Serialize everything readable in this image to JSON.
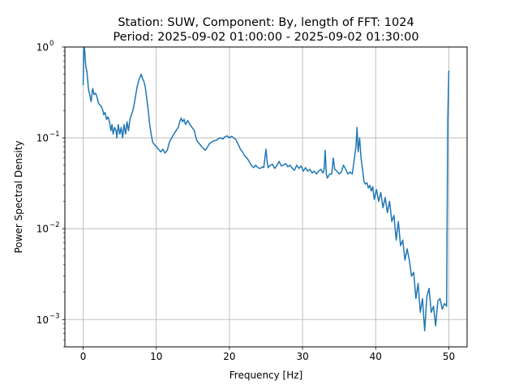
{
  "chart_data": {
    "type": "line",
    "title_line1": "Station: SUW, Component: By, length of FFT: 1024",
    "title_line2": "Period: 2025-09-02 01:00:00 - 2025-09-02 01:30:00",
    "xlabel": "Frequency [Hz]",
    "ylabel": "Power Spectral Density",
    "xscale": "linear",
    "yscale": "log",
    "xlim": [
      -2.5,
      52.5
    ],
    "ylim": [
      0.0005,
      1
    ],
    "grid": true,
    "line_color": "#1f77b4",
    "x_ticks": [
      {
        "value": 0,
        "label": "0"
      },
      {
        "value": 10,
        "label": "10"
      },
      {
        "value": 20,
        "label": "20"
      },
      {
        "value": 30,
        "label": "30"
      },
      {
        "value": 40,
        "label": "40"
      },
      {
        "value": 50,
        "label": "50"
      }
    ],
    "y_ticks": [
      {
        "value": 0.001,
        "label": "10",
        "exp": "−3"
      },
      {
        "value": 0.01,
        "label": "10",
        "exp": "−2"
      },
      {
        "value": 0.1,
        "label": "10",
        "exp": "−1"
      },
      {
        "value": 1,
        "label": "10",
        "exp": "0"
      }
    ],
    "series": [
      {
        "points": [
          [
            0.0,
            0.38
          ],
          [
            0.1,
            1.0
          ],
          [
            0.2,
            0.95
          ],
          [
            0.3,
            0.7
          ],
          [
            0.4,
            0.58
          ],
          [
            0.5,
            0.55
          ],
          [
            0.6,
            0.45
          ],
          [
            0.7,
            0.36
          ],
          [
            0.8,
            0.32
          ],
          [
            0.9,
            0.3
          ],
          [
            1.0,
            0.27
          ],
          [
            1.1,
            0.25
          ],
          [
            1.2,
            0.3
          ],
          [
            1.3,
            0.35
          ],
          [
            1.4,
            0.32
          ],
          [
            1.5,
            0.3
          ],
          [
            1.7,
            0.31
          ],
          [
            1.9,
            0.28
          ],
          [
            2.1,
            0.24
          ],
          [
            2.3,
            0.23
          ],
          [
            2.5,
            0.22
          ],
          [
            2.7,
            0.2
          ],
          [
            2.8,
            0.18
          ],
          [
            3.0,
            0.19
          ],
          [
            3.2,
            0.16
          ],
          [
            3.4,
            0.17
          ],
          [
            3.6,
            0.15
          ],
          [
            3.8,
            0.12
          ],
          [
            3.95,
            0.14
          ],
          [
            4.1,
            0.11
          ],
          [
            4.3,
            0.13
          ],
          [
            4.5,
            0.12
          ],
          [
            4.6,
            0.1
          ],
          [
            4.8,
            0.14
          ],
          [
            5.0,
            0.11
          ],
          [
            5.2,
            0.13
          ],
          [
            5.4,
            0.1
          ],
          [
            5.6,
            0.14
          ],
          [
            5.8,
            0.11
          ],
          [
            6.0,
            0.15
          ],
          [
            6.2,
            0.12
          ],
          [
            6.4,
            0.16
          ],
          [
            6.6,
            0.18
          ],
          [
            6.8,
            0.2
          ],
          [
            7.0,
            0.24
          ],
          [
            7.2,
            0.3
          ],
          [
            7.4,
            0.37
          ],
          [
            7.6,
            0.43
          ],
          [
            7.8,
            0.47
          ],
          [
            7.95,
            0.5
          ],
          [
            8.1,
            0.45
          ],
          [
            8.3,
            0.42
          ],
          [
            8.5,
            0.36
          ],
          [
            8.7,
            0.27
          ],
          [
            8.9,
            0.2
          ],
          [
            9.1,
            0.14
          ],
          [
            9.3,
            0.11
          ],
          [
            9.5,
            0.09
          ],
          [
            9.7,
            0.085
          ],
          [
            10.0,
            0.08
          ],
          [
            10.3,
            0.075
          ],
          [
            10.6,
            0.07
          ],
          [
            10.9,
            0.075
          ],
          [
            11.2,
            0.068
          ],
          [
            11.5,
            0.073
          ],
          [
            11.8,
            0.09
          ],
          [
            12.1,
            0.1
          ],
          [
            12.4,
            0.11
          ],
          [
            12.7,
            0.12
          ],
          [
            13.0,
            0.13
          ],
          [
            13.2,
            0.15
          ],
          [
            13.4,
            0.165
          ],
          [
            13.6,
            0.15
          ],
          [
            13.8,
            0.16
          ],
          [
            14.0,
            0.14
          ],
          [
            14.3,
            0.155
          ],
          [
            14.6,
            0.14
          ],
          [
            14.9,
            0.13
          ],
          [
            15.2,
            0.12
          ],
          [
            15.5,
            0.095
          ],
          [
            15.8,
            0.088
          ],
          [
            16.1,
            0.082
          ],
          [
            16.4,
            0.077
          ],
          [
            16.7,
            0.073
          ],
          [
            17.0,
            0.079
          ],
          [
            17.3,
            0.087
          ],
          [
            17.6,
            0.09
          ],
          [
            17.9,
            0.093
          ],
          [
            18.2,
            0.094
          ],
          [
            18.5,
            0.098
          ],
          [
            18.8,
            0.1
          ],
          [
            19.1,
            0.097
          ],
          [
            19.4,
            0.103
          ],
          [
            19.7,
            0.105
          ],
          [
            20.0,
            0.1
          ],
          [
            20.3,
            0.104
          ],
          [
            20.6,
            0.1
          ],
          [
            20.9,
            0.095
          ],
          [
            21.2,
            0.085
          ],
          [
            21.5,
            0.075
          ],
          [
            21.8,
            0.07
          ],
          [
            22.1,
            0.063
          ],
          [
            22.4,
            0.06
          ],
          [
            22.7,
            0.055
          ],
          [
            23.0,
            0.05
          ],
          [
            23.3,
            0.047
          ],
          [
            23.6,
            0.05
          ],
          [
            23.9,
            0.047
          ],
          [
            24.2,
            0.046
          ],
          [
            24.5,
            0.048
          ],
          [
            24.7,
            0.047
          ],
          [
            24.85,
            0.06
          ],
          [
            25.0,
            0.075
          ],
          [
            25.15,
            0.055
          ],
          [
            25.3,
            0.047
          ],
          [
            25.6,
            0.05
          ],
          [
            25.9,
            0.051
          ],
          [
            26.2,
            0.046
          ],
          [
            26.5,
            0.05
          ],
          [
            26.8,
            0.055
          ],
          [
            27.1,
            0.049
          ],
          [
            27.4,
            0.05
          ],
          [
            27.7,
            0.052
          ],
          [
            28.0,
            0.048
          ],
          [
            28.3,
            0.05
          ],
          [
            28.6,
            0.046
          ],
          [
            28.9,
            0.044
          ],
          [
            29.2,
            0.05
          ],
          [
            29.5,
            0.046
          ],
          [
            29.8,
            0.049
          ],
          [
            30.1,
            0.043
          ],
          [
            30.4,
            0.047
          ],
          [
            30.7,
            0.043
          ],
          [
            31.0,
            0.045
          ],
          [
            31.3,
            0.041
          ],
          [
            31.6,
            0.043
          ],
          [
            31.9,
            0.04
          ],
          [
            32.2,
            0.043
          ],
          [
            32.5,
            0.045
          ],
          [
            32.8,
            0.041
          ],
          [
            32.95,
            0.045
          ],
          [
            33.1,
            0.073
          ],
          [
            33.25,
            0.04
          ],
          [
            33.4,
            0.036
          ],
          [
            33.7,
            0.04
          ],
          [
            34.0,
            0.04
          ],
          [
            34.2,
            0.06
          ],
          [
            34.4,
            0.045
          ],
          [
            34.7,
            0.043
          ],
          [
            35.0,
            0.04
          ],
          [
            35.3,
            0.042
          ],
          [
            35.6,
            0.05
          ],
          [
            35.9,
            0.045
          ],
          [
            36.2,
            0.04
          ],
          [
            36.5,
            0.042
          ],
          [
            36.8,
            0.04
          ],
          [
            37.1,
            0.06
          ],
          [
            37.3,
            0.08
          ],
          [
            37.45,
            0.13
          ],
          [
            37.6,
            0.07
          ],
          [
            37.8,
            0.1
          ],
          [
            38.0,
            0.06
          ],
          [
            38.2,
            0.045
          ],
          [
            38.4,
            0.033
          ],
          [
            38.6,
            0.031
          ],
          [
            38.8,
            0.032
          ],
          [
            39.0,
            0.028
          ],
          [
            39.2,
            0.03
          ],
          [
            39.4,
            0.026
          ],
          [
            39.6,
            0.029
          ],
          [
            39.8,
            0.021
          ],
          [
            40.1,
            0.027
          ],
          [
            40.4,
            0.02
          ],
          [
            40.7,
            0.025
          ],
          [
            41.0,
            0.017
          ],
          [
            41.3,
            0.022
          ],
          [
            41.6,
            0.015
          ],
          [
            41.9,
            0.02
          ],
          [
            42.2,
            0.012
          ],
          [
            42.5,
            0.014
          ],
          [
            42.8,
            0.0075
          ],
          [
            43.1,
            0.012
          ],
          [
            43.4,
            0.0065
          ],
          [
            43.7,
            0.0075
          ],
          [
            44.0,
            0.0045
          ],
          [
            44.3,
            0.006
          ],
          [
            44.6,
            0.0045
          ],
          [
            44.9,
            0.003
          ],
          [
            45.2,
            0.0033
          ],
          [
            45.5,
            0.0017
          ],
          [
            45.8,
            0.0025
          ],
          [
            46.1,
            0.0012
          ],
          [
            46.4,
            0.0017
          ],
          [
            46.7,
            0.00075
          ],
          [
            47.0,
            0.0018
          ],
          [
            47.3,
            0.0022
          ],
          [
            47.6,
            0.0012
          ],
          [
            47.9,
            0.0014
          ],
          [
            48.2,
            0.00085
          ],
          [
            48.5,
            0.0016
          ],
          [
            48.8,
            0.0017
          ],
          [
            49.1,
            0.0013
          ],
          [
            49.4,
            0.0015
          ],
          [
            49.7,
            0.0014
          ],
          [
            49.85,
            0.15
          ],
          [
            50.0,
            0.55
          ]
        ]
      }
    ]
  }
}
